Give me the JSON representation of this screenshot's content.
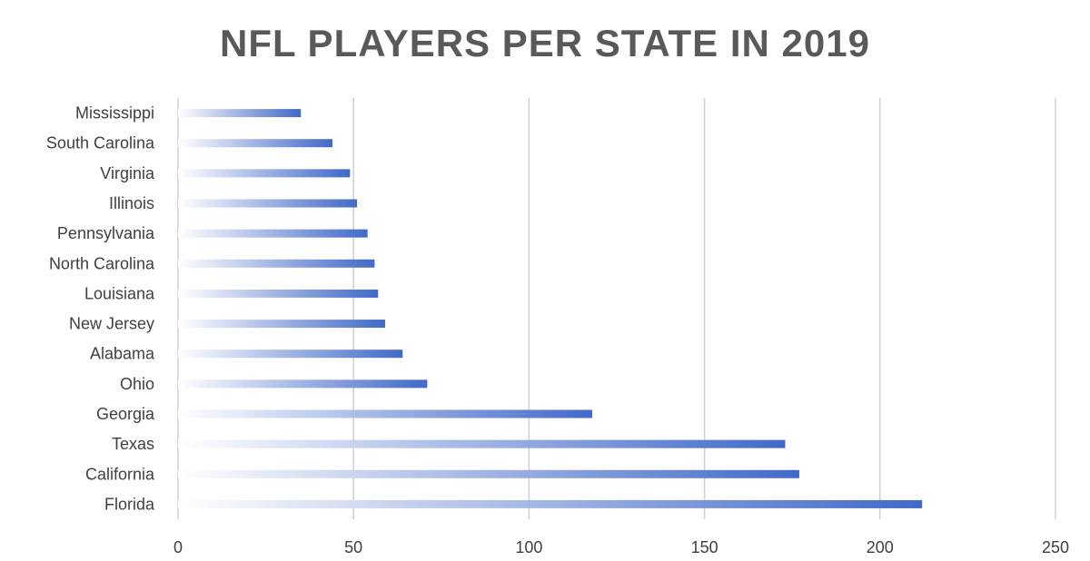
{
  "chart_data": {
    "type": "bar",
    "orientation": "horizontal",
    "title": "NFL PLAYERS PER STATE IN 2019",
    "xlabel": "",
    "ylabel": "",
    "categories": [
      "Mississippi",
      "South Carolina",
      "Virginia",
      "Illinois",
      "Pennsylvania",
      "North Carolina",
      "Louisiana",
      "New Jersey",
      "Alabama",
      "Ohio",
      "Georgia",
      "Texas",
      "California",
      "Florida"
    ],
    "values": [
      35,
      44,
      49,
      51,
      54,
      56,
      57,
      59,
      64,
      71,
      118,
      173,
      177,
      212
    ],
    "xlim": [
      0,
      250
    ],
    "xticks": [
      0,
      50,
      100,
      150,
      200,
      250
    ],
    "grid": "vertical",
    "legend": "none",
    "colors": {
      "bar_start": "#ffffff",
      "bar_end": "#4169c8",
      "grid": "#d0d0d0",
      "title": "#595959",
      "text": "#404040"
    }
  }
}
